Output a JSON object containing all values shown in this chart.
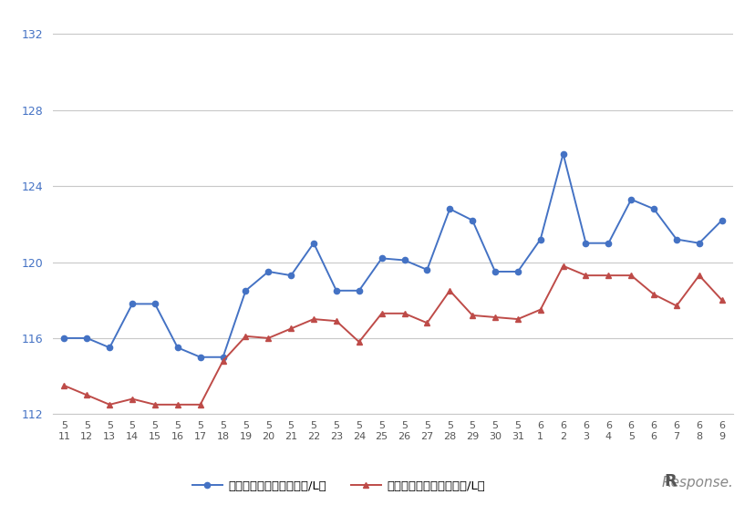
{
  "x_labels_month": [
    "5",
    "5",
    "5",
    "5",
    "5",
    "5",
    "5",
    "5",
    "5",
    "5",
    "5",
    "5",
    "5",
    "5",
    "5",
    "5",
    "5",
    "5",
    "5",
    "5",
    "5",
    "6",
    "6",
    "6",
    "6",
    "6",
    "6",
    "6",
    "6",
    "6"
  ],
  "x_labels_day": [
    "11",
    "12",
    "13",
    "14",
    "15",
    "16",
    "17",
    "18",
    "19",
    "20",
    "21",
    "22",
    "23",
    "24",
    "25",
    "26",
    "27",
    "28",
    "29",
    "30",
    "31",
    "1",
    "2",
    "3",
    "4",
    "5",
    "6",
    "7",
    "8",
    "9"
  ],
  "blue_values": [
    116.0,
    116.0,
    115.5,
    117.8,
    117.8,
    115.5,
    115.0,
    115.0,
    118.5,
    119.5,
    119.3,
    121.0,
    118.5,
    118.5,
    120.2,
    120.1,
    119.6,
    122.8,
    122.2,
    119.5,
    119.5,
    121.2,
    125.7,
    121.0,
    121.0,
    123.3,
    122.8,
    121.2,
    121.0,
    122.2
  ],
  "red_values": [
    113.5,
    113.0,
    112.5,
    112.8,
    112.5,
    112.5,
    112.5,
    114.8,
    116.1,
    116.0,
    116.5,
    117.0,
    116.9,
    115.8,
    117.3,
    117.3,
    116.8,
    118.5,
    117.2,
    117.1,
    117.0,
    117.5,
    119.8,
    119.3,
    119.3,
    119.3,
    118.3,
    117.7,
    119.3,
    118.0
  ],
  "blue_color": "#4472C4",
  "red_color": "#BE4B48",
  "ylim_min": 112,
  "ylim_max": 133,
  "yticks": [
    112,
    116,
    120,
    124,
    128,
    132
  ],
  "grid_color": "#C8C8C8",
  "background_color": "#FFFFFF",
  "legend_blue": "レギュラー看板価格（円/L）",
  "legend_red": "レギュラー実売価格（円/L）",
  "marker_size": 4.5,
  "linewidth": 1.4
}
